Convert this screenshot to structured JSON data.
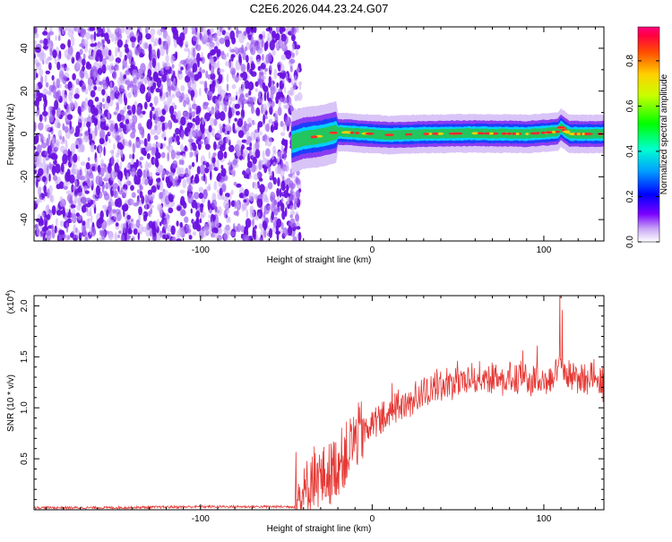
{
  "title": "C2E6.2026.044.23.24.G07",
  "colors": {
    "snr_line": "#e53935",
    "axis": "#000000",
    "noise_dark": "#6a12e0",
    "noise_light": "#c9a8f5",
    "signal_core": "#22c55e",
    "signal_hot": "#ff2a2a"
  },
  "chart_data": [
    {
      "type": "heatmap",
      "title": "C2E6.2026.044.23.24.G07",
      "xlabel": "Height of straight line (km)",
      "ylabel": "Frequency (Hz)",
      "xlim": [
        -197,
        135
      ],
      "ylim": [
        -50,
        50
      ],
      "xticks": [
        -100,
        0,
        100
      ],
      "xtick_labels": [
        "-100",
        "0",
        "100"
      ],
      "yticks": [
        -40,
        -20,
        0,
        20,
        40
      ],
      "ytick_labels": [
        "-40",
        "-20",
        "0",
        "20",
        "40"
      ],
      "noise_region_x": [
        -197,
        -45
      ],
      "signal_track": {
        "x_start": -47,
        "x_end": 135,
        "points": [
          [
            -47,
            -4
          ],
          [
            -40,
            -2
          ],
          [
            -30,
            -1
          ],
          [
            -20,
            1
          ],
          [
            -10,
            0.5
          ],
          [
            0,
            0
          ],
          [
            10,
            -0.5
          ],
          [
            30,
            0
          ],
          [
            60,
            0.3
          ],
          [
            90,
            0
          ],
          [
            108,
            1
          ],
          [
            110,
            3
          ],
          [
            115,
            0
          ],
          [
            135,
            0
          ]
        ]
      },
      "colorbar": {
        "label": "Normalized spectral amplitude",
        "range": [
          0.0,
          0.95
        ],
        "ticks": [
          0.0,
          0.2,
          0.4,
          0.6,
          0.8
        ],
        "tick_labels": [
          "0.0",
          "0.2",
          "0.4",
          "0.6",
          "0.8"
        ]
      }
    },
    {
      "type": "line",
      "xlabel": "Height of straight line (km)",
      "ylabel": "SNR (10 * v/v)",
      "y_multiplier": "(x10",
      "y_multiplier_exp": "4",
      "y_multiplier_close": ")",
      "xlim": [
        -197,
        135
      ],
      "ylim": [
        0.0,
        2.1
      ],
      "xticks": [
        -100,
        0,
        100
      ],
      "xtick_labels": [
        "-100",
        "0",
        "100"
      ],
      "yticks": [
        0.5,
        1.0,
        1.5,
        2.0
      ],
      "ytick_labels": [
        "0.5",
        "1.0",
        "1.5",
        "2.0"
      ],
      "series": [
        {
          "name": "SNR",
          "x": [
            -197,
            -150,
            -100,
            -60,
            -45,
            -40,
            -35,
            -30,
            -25,
            -20,
            -15,
            -10,
            -5,
            0,
            10,
            20,
            30,
            40,
            50,
            60,
            70,
            80,
            90,
            100,
            105,
            110,
            115,
            120,
            125,
            130,
            135
          ],
          "values": [
            0.02,
            0.02,
            0.03,
            0.03,
            0.03,
            0.1,
            0.35,
            0.3,
            0.35,
            0.45,
            0.55,
            0.7,
            0.78,
            0.85,
            0.95,
            1.05,
            1.15,
            1.22,
            1.25,
            1.3,
            1.3,
            1.28,
            1.3,
            1.28,
            1.27,
            1.45,
            1.3,
            1.3,
            1.28,
            1.4,
            1.2
          ]
        }
      ]
    }
  ]
}
